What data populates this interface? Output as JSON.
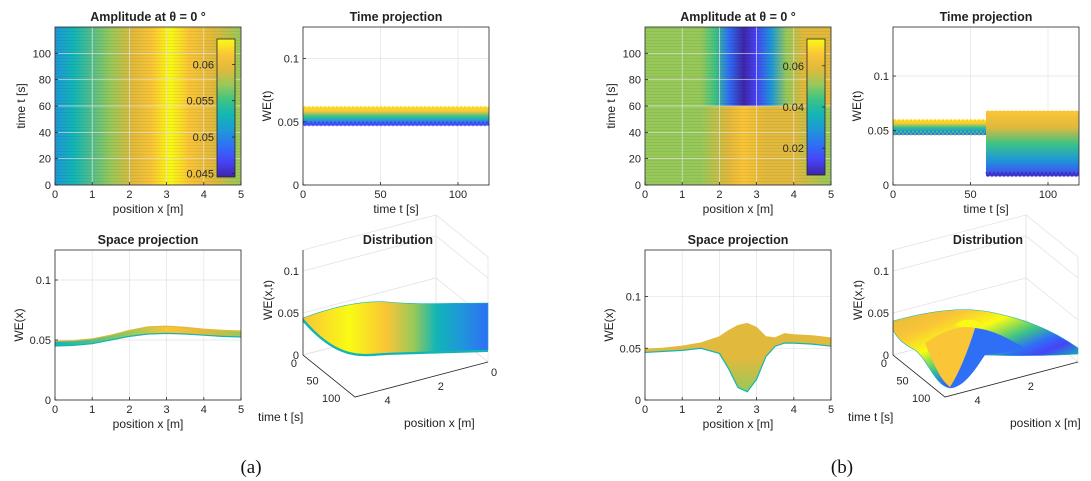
{
  "colors": {
    "parula": [
      "#3e26a8",
      "#4743f8",
      "#2f6ff6",
      "#1e98d8",
      "#12b5b6",
      "#3cc385",
      "#97c95a",
      "#e1b93c",
      "#fac537",
      "#f9fb14"
    ],
    "axis": "#262626",
    "grid": "#e3e3e3"
  },
  "captions": [
    "(a)",
    "(b)"
  ],
  "chart_data": [
    {
      "id": "a-heatmap",
      "type": "heatmap",
      "title": "Amplitude at θ = 0 °",
      "xlabel": "position x [m]",
      "ylabel": "time t [s]",
      "xlim": [
        0,
        5
      ],
      "ylim": [
        0,
        120
      ],
      "xticks": [
        "0",
        "1",
        "2",
        "3",
        "4",
        "5"
      ],
      "yticks": [
        "0",
        "20",
        "40",
        "60",
        "80",
        "100"
      ],
      "colorbar": {
        "range": [
          0.0445,
          0.0635
        ],
        "ticks": [
          "0.045",
          "0.05",
          "0.055",
          "0.06"
        ]
      },
      "grid": true
    },
    {
      "id": "a-time",
      "type": "line",
      "title": "Time projection",
      "xlabel": "time t [s]",
      "ylabel": "WE(t)",
      "xlim": [
        0,
        120
      ],
      "ylim": [
        0,
        0.125
      ],
      "xticks": [
        "0",
        "50",
        "100"
      ],
      "yticks": [
        "0",
        "0.05",
        "0.1"
      ],
      "band": [
        {
          "t": [
            0,
            120
          ],
          "min": 0.047,
          "max": 0.062
        }
      ],
      "grid": true
    },
    {
      "id": "a-space",
      "type": "line",
      "title": "Space projection",
      "xlabel": "position x [m]",
      "ylabel": "WE(x)",
      "xlim": [
        0,
        5
      ],
      "ylim": [
        0,
        0.125
      ],
      "xticks": [
        "0",
        "1",
        "2",
        "3",
        "4",
        "5"
      ],
      "yticks": [
        "0",
        "0.05",
        "0.1"
      ],
      "x": [
        0,
        0.5,
        1,
        1.5,
        2,
        2.5,
        3,
        3.5,
        4,
        4.5,
        5
      ],
      "upper": [
        0.049,
        0.0495,
        0.051,
        0.054,
        0.058,
        0.061,
        0.0615,
        0.0605,
        0.059,
        0.058,
        0.0575
      ],
      "lower": [
        0.045,
        0.0455,
        0.047,
        0.05,
        0.053,
        0.055,
        0.0555,
        0.055,
        0.054,
        0.053,
        0.0525
      ],
      "grid": true
    },
    {
      "id": "a-dist",
      "type": "surface",
      "title": "Distribution",
      "xlabel": "position x [m]",
      "ylabel": "time t [s]",
      "zlabel": "WE(x,t)",
      "zticks": [
        "0",
        "0.05",
        "0.1"
      ],
      "tticks": [
        "0",
        "50",
        "100"
      ],
      "xticks": [
        "4",
        "2",
        "0"
      ],
      "grid": true
    },
    {
      "id": "b-heatmap",
      "type": "heatmap",
      "title": "Amplitude at θ = 0 °",
      "xlabel": "position x [m]",
      "ylabel": "time t [s]",
      "xlim": [
        0,
        5
      ],
      "ylim": [
        0,
        120
      ],
      "xticks": [
        "0",
        "1",
        "2",
        "3",
        "4",
        "5"
      ],
      "yticks": [
        "0",
        "20",
        "40",
        "60",
        "80",
        "100"
      ],
      "colorbar": {
        "range": [
          0.007,
          0.073
        ],
        "ticks": [
          "0.02",
          "0.04",
          "0.06"
        ]
      },
      "grid": true
    },
    {
      "id": "b-time",
      "type": "line",
      "title": "Time projection",
      "xlabel": "time t [s]",
      "ylabel": "WE(t)",
      "xlim": [
        0,
        120
      ],
      "ylim": [
        0,
        0.145
      ],
      "xticks": [
        "0",
        "50",
        "100"
      ],
      "yticks": [
        "0",
        "0.05",
        "0.1"
      ],
      "band": [
        {
          "t": [
            0,
            60
          ],
          "min": 0.046,
          "max": 0.06
        },
        {
          "t": [
            60,
            120
          ],
          "min": 0.008,
          "max": 0.068
        }
      ],
      "grid": true
    },
    {
      "id": "b-space",
      "type": "line",
      "title": "Space projection",
      "xlabel": "position x [m]",
      "ylabel": "WE(x)",
      "xlim": [
        0,
        5
      ],
      "ylim": [
        0,
        0.145
      ],
      "xticks": [
        "0",
        "1",
        "2",
        "3",
        "4",
        "5"
      ],
      "yticks": [
        "0",
        "0.05",
        "0.1"
      ],
      "x": [
        0,
        0.5,
        1,
        1.5,
        2,
        2.25,
        2.5,
        2.75,
        3,
        3.25,
        3.5,
        3.75,
        4,
        4.5,
        5
      ],
      "upper": [
        0.049,
        0.05,
        0.052,
        0.055,
        0.061,
        0.067,
        0.072,
        0.074,
        0.07,
        0.061,
        0.06,
        0.064,
        0.063,
        0.062,
        0.06
      ],
      "lower": [
        0.046,
        0.047,
        0.048,
        0.05,
        0.045,
        0.03,
        0.012,
        0.008,
        0.02,
        0.042,
        0.052,
        0.055,
        0.055,
        0.054,
        0.052
      ],
      "grid": true
    },
    {
      "id": "b-dist",
      "type": "surface",
      "title": "Distribution",
      "xlabel": "position x [m]",
      "ylabel": "time t [s]",
      "zlabel": "WE(x,t)",
      "zticks": [
        "0",
        "0.05",
        "0.1"
      ],
      "tticks": [
        "0",
        "50",
        "100"
      ],
      "xticks": [
        "4",
        "2"
      ],
      "grid": true
    }
  ]
}
